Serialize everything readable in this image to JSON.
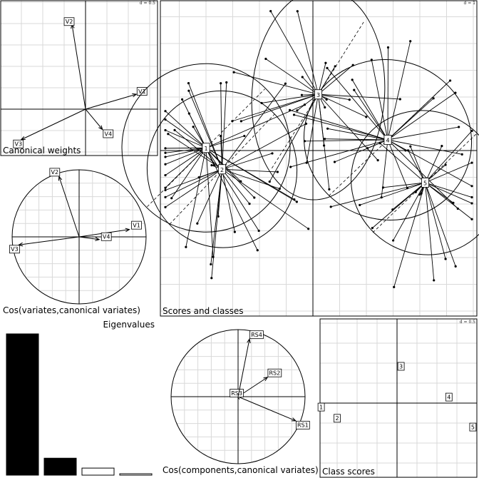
{
  "chart_data": [
    {
      "type": "scatter",
      "panel": "canonical-weights",
      "title": "Canonical weights",
      "grid_label": "d = 0.5",
      "points": [
        {
          "label": "V1",
          "x": 0.75,
          "y": 0.22
        },
        {
          "label": "V2",
          "x": -0.2,
          "y": 1.25
        },
        {
          "label": "V3",
          "x": -0.95,
          "y": -0.45
        },
        {
          "label": "V4",
          "x": 0.25,
          "y": -0.3
        }
      ]
    },
    {
      "type": "scatter",
      "panel": "cos-variates",
      "title": "Cos(variates,canonical variates)",
      "points": [
        {
          "label": "V1",
          "x": 0.75,
          "y": 0.11
        },
        {
          "label": "V2",
          "x": -0.3,
          "y": 0.9
        },
        {
          "label": "V3",
          "x": -0.9,
          "y": -0.12
        },
        {
          "label": "V4",
          "x": 0.3,
          "y": -0.04
        }
      ]
    },
    {
      "type": "scatter",
      "panel": "scores-and-classes",
      "title": "Scores and classes",
      "grid_label": "d = 1",
      "classes": [
        {
          "label": "1",
          "x": -2.0,
          "y": 0.05
        },
        {
          "label": "2",
          "x": -1.7,
          "y": -0.35
        },
        {
          "label": "3",
          "x": 0.1,
          "y": 1.05
        },
        {
          "label": "4",
          "x": 1.4,
          "y": 0.2
        },
        {
          "label": "5",
          "x": 2.1,
          "y": -0.6
        }
      ]
    },
    {
      "type": "bar",
      "panel": "eigenvalues",
      "title": "Eigenvalues",
      "values": [
        1.0,
        0.12,
        0.05,
        0.01
      ]
    },
    {
      "type": "scatter",
      "panel": "cos-components",
      "title": "Cos(components,canonical variates)",
      "points": [
        {
          "label": "RS1",
          "x": 0.86,
          "y": -0.36
        },
        {
          "label": "RS2",
          "x": 0.44,
          "y": 0.29
        },
        {
          "label": "RS3",
          "x": -0.02,
          "y": 0.01
        },
        {
          "label": "RS4",
          "x": 0.17,
          "y": 0.86
        }
      ]
    },
    {
      "type": "scatter",
      "panel": "class-scores",
      "title": "Class scores",
      "grid_label": "d = 0.5",
      "points": [
        {
          "label": "1",
          "x": -1.9,
          "y": -0.1
        },
        {
          "label": "2",
          "x": -1.5,
          "y": -0.38
        },
        {
          "label": "3",
          "x": 0.1,
          "y": 0.92
        },
        {
          "label": "4",
          "x": 1.3,
          "y": 0.15
        },
        {
          "label": "5",
          "x": 1.9,
          "y": -0.6
        }
      ]
    }
  ]
}
